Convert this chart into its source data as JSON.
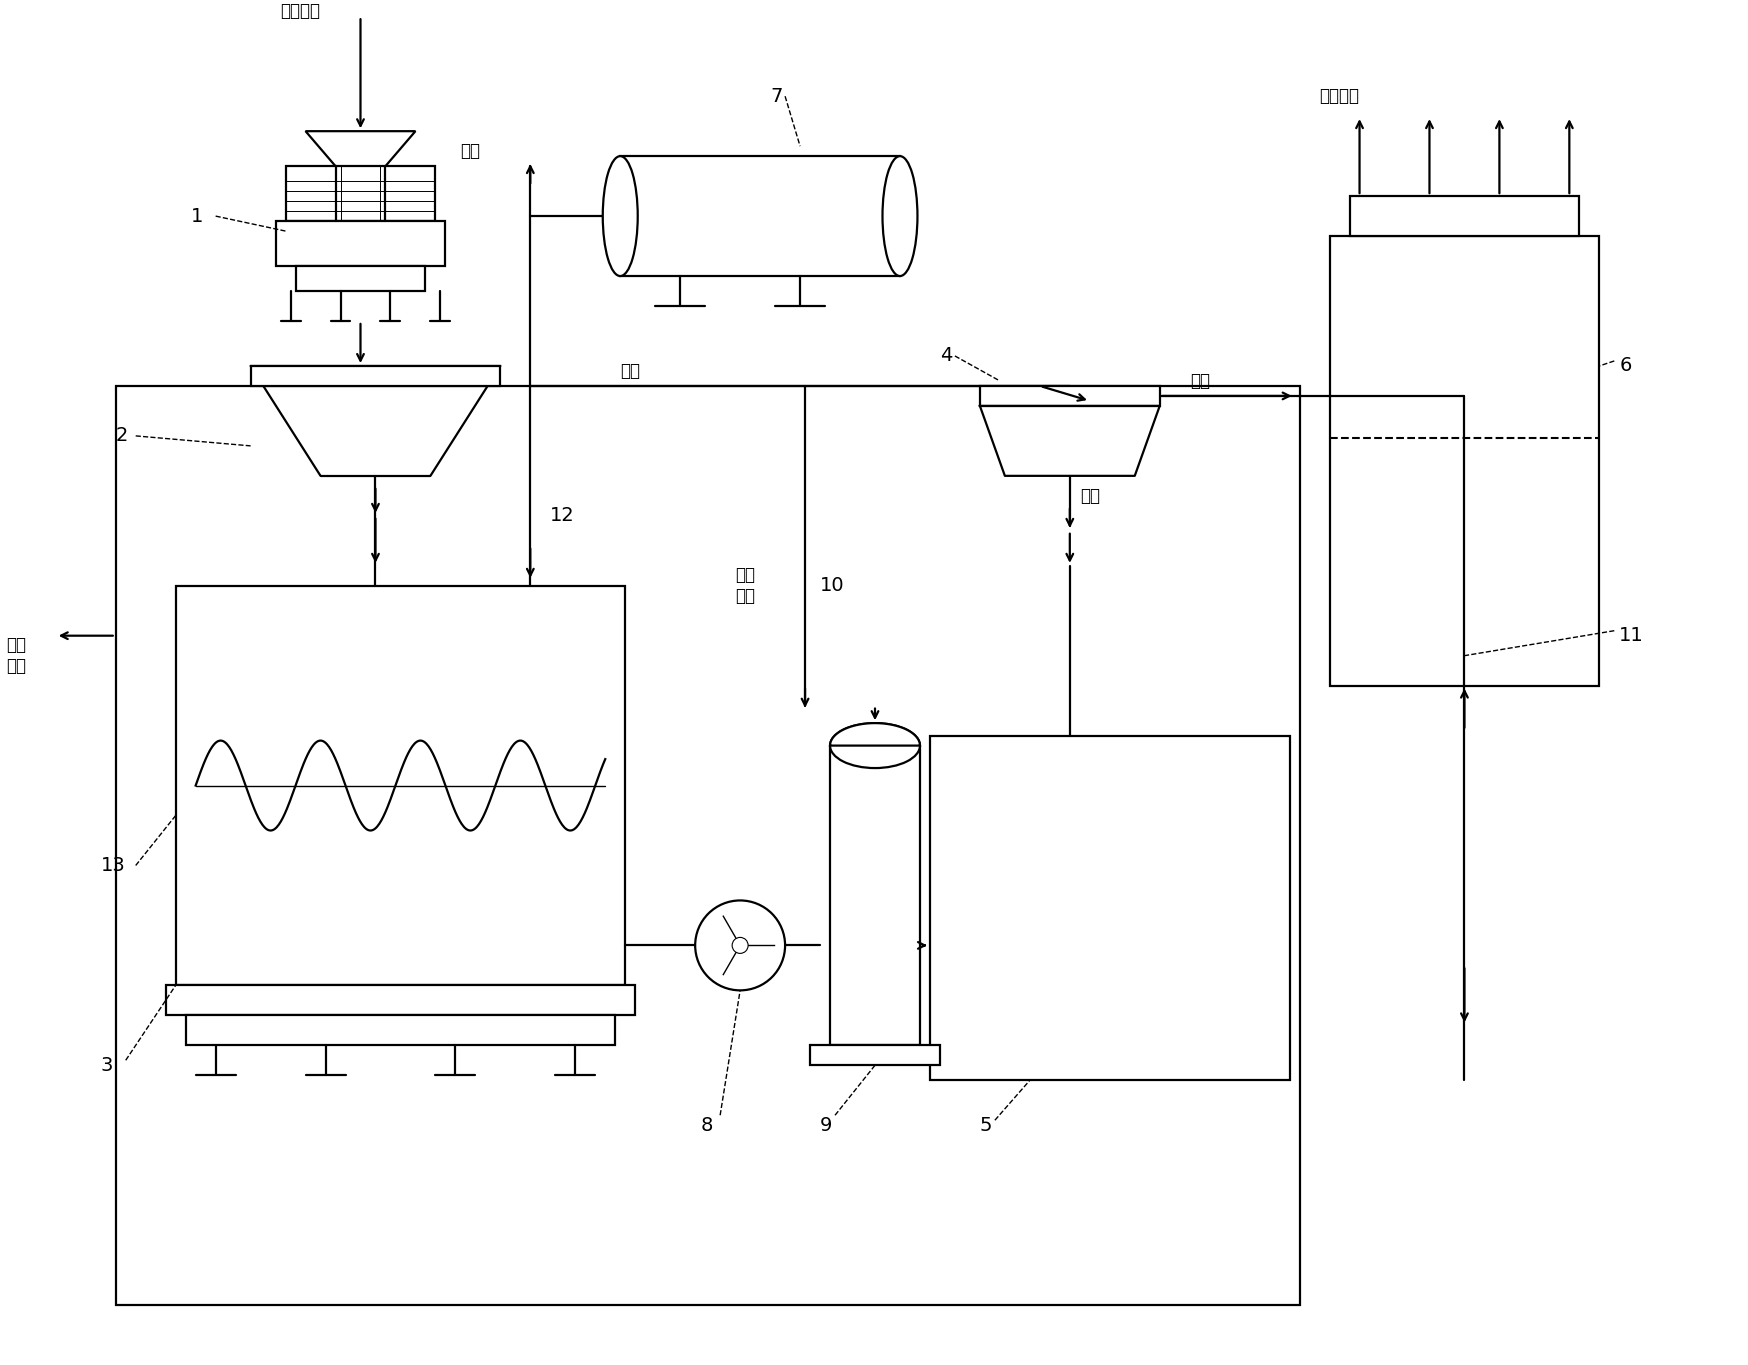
{
  "bg": "#ffffff",
  "lc": "#000000",
  "lw": 1.6,
  "fw": 17.49,
  "fh": 13.65,
  "dpi": 100,
  "t": {
    "yi_fu": "易腐垃圾",
    "zhao_qi": "沼气",
    "kong_qi": "空气",
    "jie_jing": "洁净空气",
    "zhao_zha_ye": "沼渣\n沼液",
    "zhao_zha": "沼渣",
    "zhao_ye_hui": "沼液\n回用",
    "chou_qi": "臭气"
  }
}
